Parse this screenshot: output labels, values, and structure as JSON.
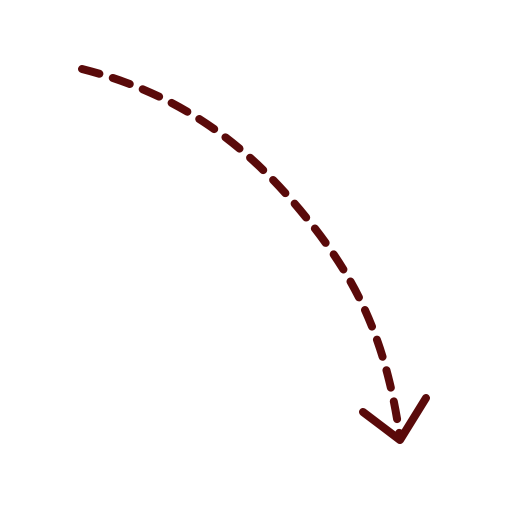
{
  "graphic": {
    "icon": "dashed-curved-arrow-down-right",
    "stroke_color": "#5a0a0a",
    "background_color": "#ffffff"
  }
}
